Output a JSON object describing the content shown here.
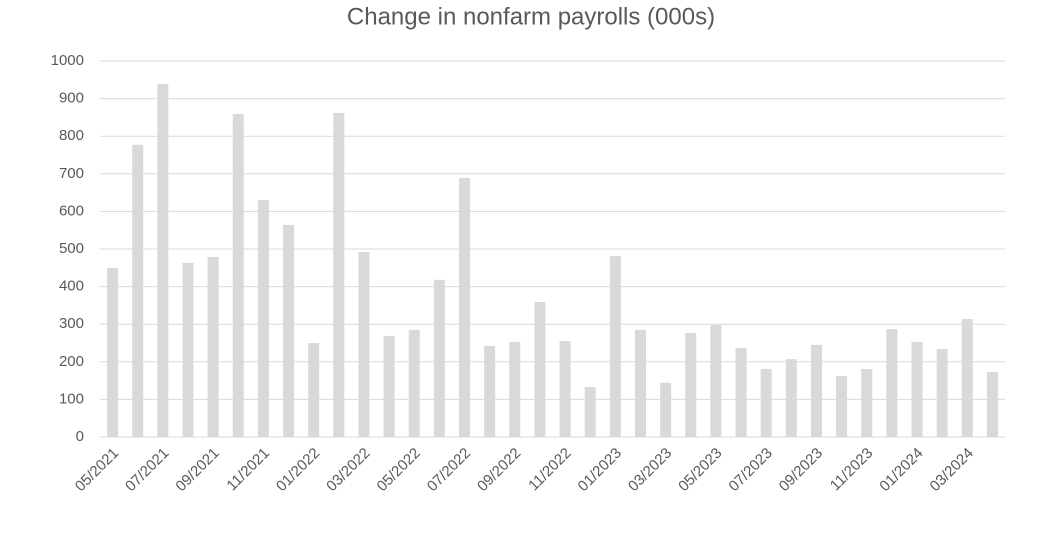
{
  "chart_data": {
    "type": "bar",
    "title": "Change in nonfarm payrolls (000s)",
    "categories": [
      "05/2021",
      null,
      "07/2021",
      null,
      "09/2021",
      null,
      "11/2021",
      null,
      "01/2022",
      null,
      "03/2022",
      null,
      "05/2022",
      null,
      "07/2022",
      null,
      "09/2022",
      null,
      "11/2022",
      null,
      "01/2023",
      null,
      "03/2023",
      null,
      "05/2023",
      null,
      "07/2023",
      null,
      "09/2023",
      null,
      "11/2023",
      null,
      "01/2024",
      null,
      "03/2024",
      null
    ],
    "values": [
      450,
      777,
      939,
      463,
      479,
      859,
      630,
      564,
      250,
      862,
      492,
      269,
      285,
      418,
      689,
      242,
      253,
      359,
      255,
      133,
      481,
      285,
      144,
      277,
      298,
      237,
      181,
      207,
      245,
      162,
      181,
      287,
      253,
      234,
      314,
      173
    ],
    "color": "#d9d9d9",
    "ylim": [
      0,
      1000
    ],
    "yticks": [
      0,
      100,
      200,
      300,
      400,
      500,
      600,
      700,
      800,
      900,
      1000
    ],
    "grid": true
  }
}
